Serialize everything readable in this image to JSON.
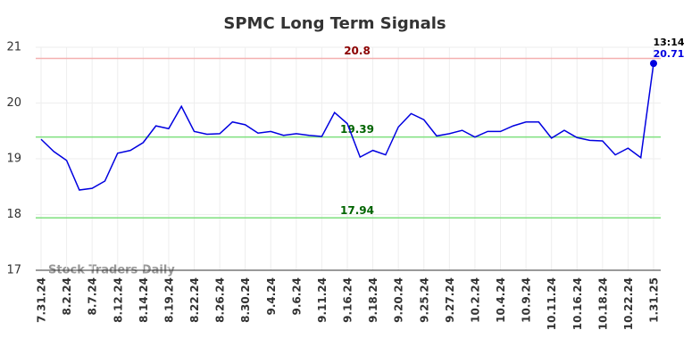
{
  "chart_data": {
    "type": "line",
    "title": "SPMC Long Term Signals",
    "categories": [
      "7.31.24",
      null,
      "8.2.24",
      null,
      "8.7.24",
      null,
      "8.12.24",
      null,
      "8.14.24",
      null,
      "8.19.24",
      null,
      "8.22.24",
      null,
      "8.26.24",
      null,
      "8.30.24",
      null,
      "9.4.24",
      null,
      "9.6.24",
      null,
      "9.11.24",
      null,
      "9.16.24",
      null,
      "9.18.24",
      null,
      "9.20.24",
      null,
      "9.25.24",
      null,
      "9.27.24",
      null,
      "10.2.24",
      null,
      "10.4.24",
      null,
      "10.9.24",
      null,
      "10.11.24",
      null,
      "10.16.24",
      null,
      "10.18.24",
      null,
      "10.22.24",
      null,
      "1.31.25"
    ],
    "series": [
      {
        "name": "SPMC",
        "color": "#0000e0",
        "values": [
          19.35,
          19.13,
          18.97,
          18.44,
          18.47,
          18.6,
          19.1,
          19.15,
          19.29,
          19.59,
          19.54,
          19.94,
          19.49,
          19.44,
          19.45,
          19.66,
          19.61,
          19.46,
          19.49,
          19.42,
          19.45,
          19.42,
          19.4,
          19.83,
          19.63,
          19.03,
          19.15,
          19.07,
          19.57,
          19.81,
          19.7,
          19.41,
          19.45,
          19.51,
          19.39,
          19.49,
          19.49,
          19.59,
          19.66,
          19.66,
          19.37,
          19.51,
          19.38,
          19.33,
          19.32,
          19.07,
          19.19,
          19.02,
          20.71
        ]
      }
    ],
    "hlines": [
      {
        "value": 20.8,
        "color": "#f4b0b0",
        "label_color": "#8b0000"
      },
      {
        "value": 19.39,
        "color": "#7ee07e",
        "label_color": "#006400"
      },
      {
        "value": 17.94,
        "color": "#7ee07e",
        "label_color": "#006400"
      }
    ],
    "last_time": "13:14",
    "watermark": "Stock Traders Daily",
    "ylim": [
      17,
      21
    ],
    "yticks": [
      17,
      18,
      19,
      20,
      21
    ],
    "grid": true
  }
}
